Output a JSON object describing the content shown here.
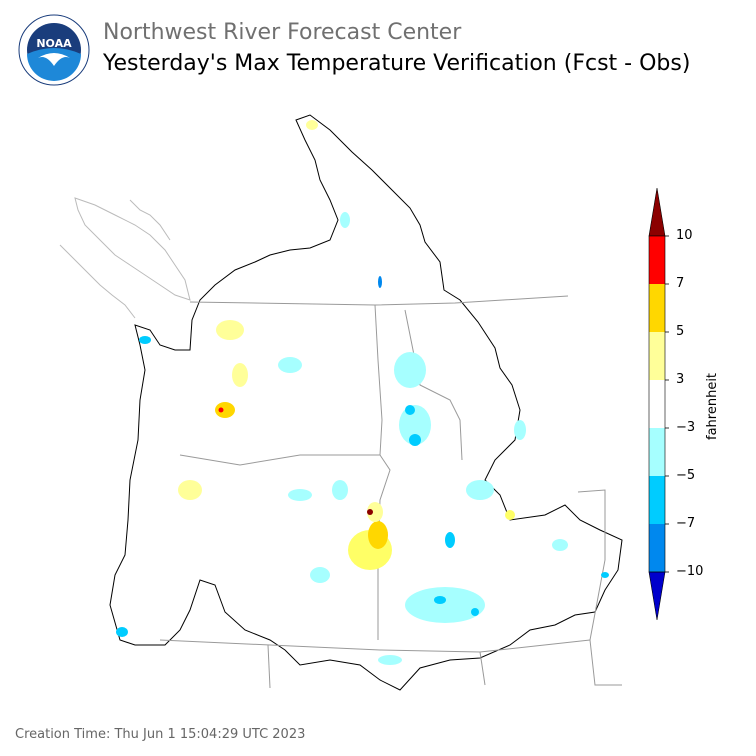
{
  "header": {
    "organization": "Northwest River Forecast Center",
    "title": "Yesterday's Max Temperature Verification (Fcst - Obs)",
    "logo_text": "NOAA"
  },
  "colorbar": {
    "unit": "fahrenheit",
    "ticks": [
      "10",
      "7",
      "5",
      "3",
      "−3",
      "−5",
      "−7",
      "−10"
    ],
    "bins": [
      {
        "range": "> 10",
        "color": "#8b0000"
      },
      {
        "range": "7 to 10",
        "color": "#ff0000"
      },
      {
        "range": "5 to 7",
        "color": "#ffd700"
      },
      {
        "range": "3 to 5",
        "color": "#ffff99"
      },
      {
        "range": "-3 to 3",
        "color": "#ffffff"
      },
      {
        "range": "-5 to -3",
        "color": "#a6ffff"
      },
      {
        "range": "-7 to -5",
        "color": "#00ccff"
      },
      {
        "range": "-10 to -7",
        "color": "#0088ee"
      },
      {
        "range": "< -10",
        "color": "#0000cc"
      }
    ]
  },
  "footer": {
    "creation_time": "Creation Time: Thu Jun 1 15:04:29 UTC 2023"
  }
}
